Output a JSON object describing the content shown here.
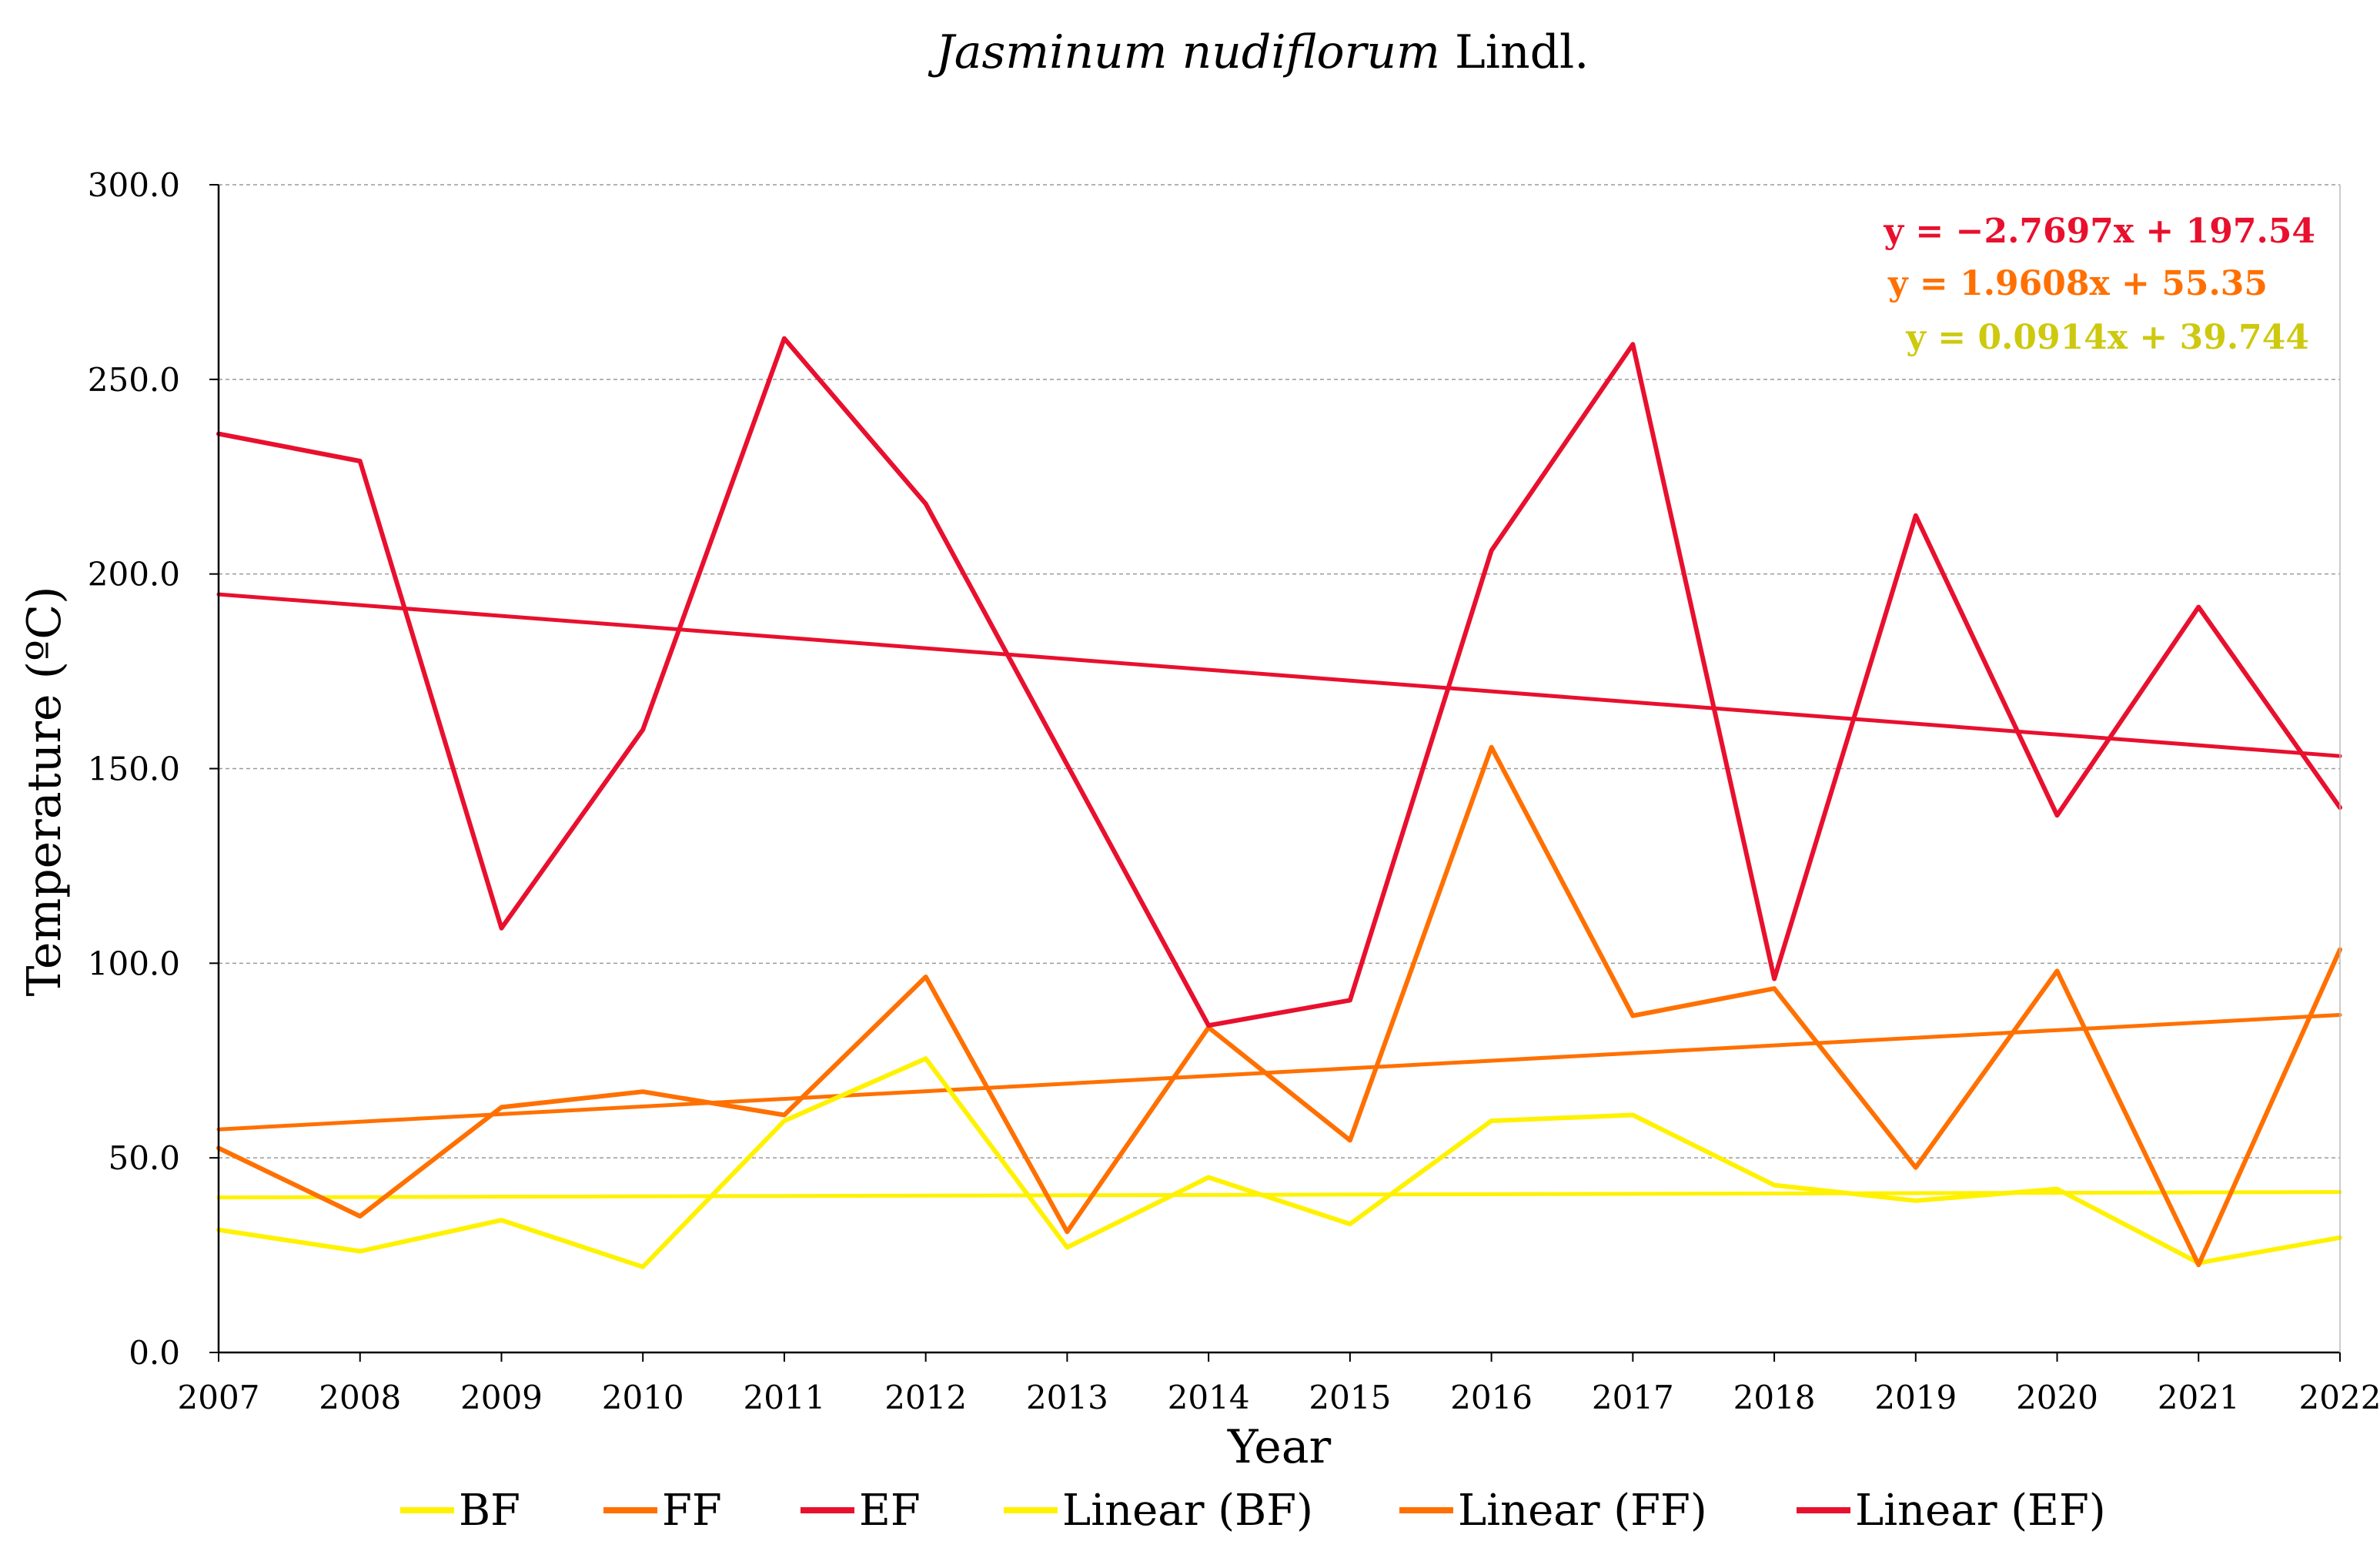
{
  "colors": {
    "BF": "#FFF200",
    "FF": "#FF7000",
    "EF": "#E8102E",
    "eq_BF": "#CDC90E",
    "grid": "#9a9a9a",
    "axis": "#000000"
  },
  "chart_data": {
    "type": "line",
    "title_italic": "Jasminum nudiflorum",
    "title_rest": " Lindl.",
    "xlabel": "Year",
    "ylabel": "Temperature   (ºC)",
    "categories": [
      "2007",
      "2008",
      "2009",
      "2010",
      "2011",
      "2012",
      "2013",
      "2014",
      "2015",
      "2016",
      "2017",
      "2018",
      "2019",
      "2020",
      "2021",
      "2022"
    ],
    "ylim": [
      0,
      300
    ],
    "yticks": [
      "0.0",
      "50.0",
      "100.0",
      "150.0",
      "200.0",
      "250.0",
      "300.0"
    ],
    "grid": true,
    "series": [
      {
        "key": "BF",
        "name": "BF",
        "values": [
          31.5,
          26.0,
          34.0,
          22.0,
          59.5,
          75.5,
          27.0,
          45.0,
          33.0,
          59.5,
          61.0,
          43.0,
          39.0,
          42.0,
          23.0,
          29.5
        ]
      },
      {
        "key": "FF",
        "name": "FF",
        "values": [
          52.5,
          35.0,
          63.0,
          67.0,
          61.0,
          96.5,
          31.0,
          83.5,
          54.5,
          155.5,
          86.5,
          93.5,
          47.5,
          98.0,
          22.5,
          103.5
        ]
      },
      {
        "key": "EF",
        "name": "EF",
        "values": [
          236.0,
          229.0,
          109.0,
          160.0,
          260.5,
          218.0,
          151.0,
          84.0,
          90.5,
          206.0,
          259.0,
          96.0,
          215.0,
          138.0,
          191.5,
          140.0
        ]
      }
    ],
    "trendlines": [
      {
        "key": "BF",
        "name": "Linear (BF)",
        "slope": 0.0914,
        "intercept": 39.744,
        "equation": "y = 0.0914x + 39.744"
      },
      {
        "key": "FF",
        "name": "Linear (FF)",
        "slope": 1.9608,
        "intercept": 55.35,
        "equation": "y = 1.9608x + 55.35"
      },
      {
        "key": "EF",
        "name": "Linear (EF)",
        "slope": -2.7697,
        "intercept": 197.54,
        "equation": "y = −2.7697x + 197.54"
      }
    ],
    "legend": {
      "position": "bottom",
      "entries": [
        "BF",
        "FF",
        "EF",
        "Linear (BF)",
        "Linear (FF)",
        "Linear (EF)"
      ]
    }
  }
}
